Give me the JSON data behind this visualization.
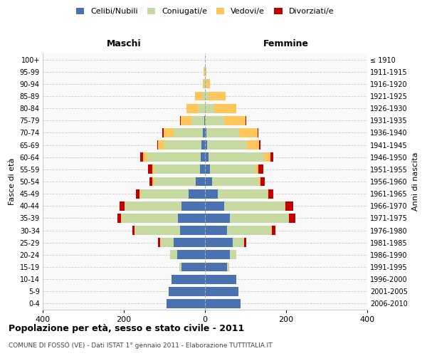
{
  "age_groups": [
    "0-4",
    "5-9",
    "10-14",
    "15-19",
    "20-24",
    "25-29",
    "30-34",
    "35-39",
    "40-44",
    "45-49",
    "50-54",
    "55-59",
    "60-64",
    "65-69",
    "70-74",
    "75-79",
    "80-84",
    "85-89",
    "90-94",
    "95-99",
    "100+"
  ],
  "birth_years": [
    "2006-2010",
    "2001-2005",
    "1996-2000",
    "1991-1995",
    "1986-1990",
    "1981-1985",
    "1976-1980",
    "1971-1975",
    "1966-1970",
    "1961-1965",
    "1956-1960",
    "1951-1955",
    "1946-1950",
    "1941-1945",
    "1936-1940",
    "1931-1935",
    "1926-1930",
    "1921-1925",
    "1916-1920",
    "1911-1915",
    "≤ 1910"
  ],
  "colors": {
    "celibi": "#4a72b0",
    "coniugati": "#c5d9a0",
    "vedovi": "#ffc65c",
    "divorziati": "#c00000"
  },
  "maschi": {
    "celibi": [
      95,
      90,
      82,
      58,
      68,
      78,
      62,
      67,
      58,
      40,
      22,
      13,
      10,
      8,
      5,
      2,
      0,
      0,
      0,
      0,
      0
    ],
    "coniugati": [
      0,
      0,
      0,
      5,
      18,
      32,
      112,
      138,
      138,
      118,
      102,
      112,
      132,
      92,
      72,
      32,
      15,
      5,
      2,
      1,
      0
    ],
    "vedovi": [
      0,
      0,
      0,
      0,
      0,
      0,
      0,
      2,
      2,
      3,
      5,
      5,
      10,
      15,
      25,
      25,
      30,
      20,
      3,
      2,
      0
    ],
    "divorziati": [
      0,
      0,
      0,
      0,
      0,
      5,
      5,
      8,
      12,
      10,
      8,
      10,
      8,
      3,
      3,
      2,
      0,
      0,
      0,
      0,
      0
    ]
  },
  "femmine": {
    "celibi": [
      88,
      82,
      78,
      55,
      62,
      68,
      55,
      62,
      48,
      32,
      17,
      12,
      8,
      5,
      3,
      0,
      0,
      0,
      0,
      0,
      0
    ],
    "coniugati": [
      0,
      0,
      0,
      5,
      15,
      28,
      108,
      145,
      148,
      122,
      115,
      112,
      138,
      98,
      82,
      48,
      22,
      8,
      3,
      1,
      0
    ],
    "vedovi": [
      0,
      0,
      0,
      0,
      0,
      0,
      2,
      0,
      2,
      3,
      5,
      8,
      15,
      30,
      45,
      52,
      55,
      42,
      10,
      3,
      0
    ],
    "divorziati": [
      0,
      0,
      0,
      0,
      0,
      5,
      8,
      15,
      20,
      12,
      10,
      12,
      8,
      3,
      2,
      2,
      0,
      0,
      0,
      0,
      0
    ]
  },
  "xlim": 400,
  "title": "Popolazione per età, sesso e stato civile - 2011",
  "subtitle": "COMUNE DI FOSSÒ (VE) - Dati ISTAT 1° gennaio 2011 - Elaborazione TUTTITALIA.IT",
  "ylabel_left": "Fasce di età",
  "ylabel_right": "Anni di nascita"
}
